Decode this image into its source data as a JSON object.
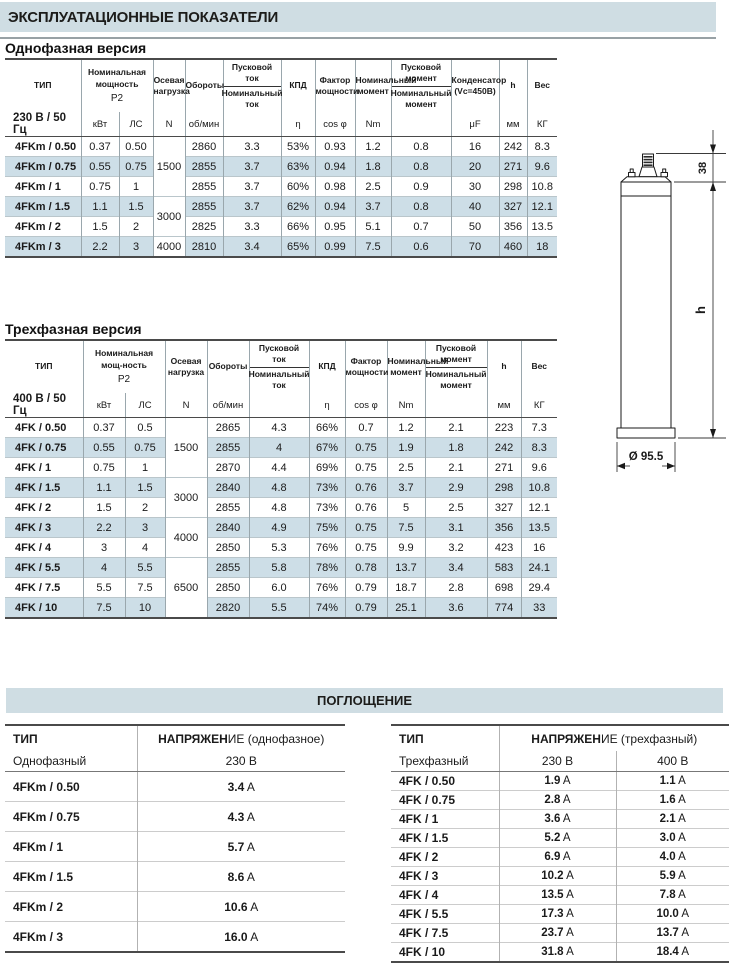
{
  "page_title": "ЭКСПЛУАТАЦИОННЫЕ ПОКАЗАТЕЛИ",
  "single_phase": {
    "section_title": "Однофазная версия",
    "h": {
      "type": "ТИП",
      "volt": "230 В / 50 Гц",
      "power": "Номинальная мощность",
      "p2": "P2",
      "kw": "кВт",
      "hp": "ЛС",
      "axial": "Осевая нагрузка",
      "axial_u": "N",
      "speed": "Обороты",
      "speed_u": "об/мин",
      "cur_top": "Пусковой ток",
      "cur_bot": "Номинальный ток",
      "eff": "КПД",
      "eff_u": "η",
      "pf": "Фактор мощности",
      "pf_u": "cos φ",
      "torque": "Номинальный момент",
      "torque_u": "Nm",
      "st_top": "Пусковой момент",
      "st_bot": "Номинальный момент",
      "cap": "Конденсатор (Vc=450B)",
      "cap_u": "μF",
      "h": "h",
      "h_u": "мм",
      "weight": "Вес",
      "weight_u": "КГ"
    },
    "rows": [
      [
        "4FKm / 0.50",
        "0.37",
        "0.50",
        {
          "text": "1500",
          "rowspan": 3
        },
        "2860",
        "3.3",
        "53%",
        "0.93",
        "1.2",
        "0.8",
        "16",
        "242",
        "8.3"
      ],
      [
        "4FKm / 0.75",
        "0.55",
        "0.75",
        "2855",
        "3.7",
        "63%",
        "0.94",
        "1.8",
        "0.8",
        "20",
        "271",
        "9.6"
      ],
      [
        "4FKm / 1",
        "0.75",
        "1",
        "2855",
        "3.7",
        "60%",
        "0.98",
        "2.5",
        "0.9",
        "30",
        "298",
        "10.8"
      ],
      [
        "4FKm / 1.5",
        "1.1",
        "1.5",
        {
          "text": "3000",
          "rowspan": 2
        },
        "2855",
        "3.7",
        "62%",
        "0.94",
        "3.7",
        "0.8",
        "40",
        "327",
        "12.1"
      ],
      [
        "4FKm / 2",
        "1.5",
        "2",
        "2825",
        "3.3",
        "66%",
        "0.95",
        "5.1",
        "0.7",
        "50",
        "356",
        "13.5"
      ],
      [
        "4FKm / 3",
        "2.2",
        "3",
        {
          "text": "4000",
          "rowspan": 1
        },
        "2810",
        "3.4",
        "65%",
        "0.99",
        "7.5",
        "0.6",
        "70",
        "460",
        "18"
      ]
    ]
  },
  "three_phase": {
    "section_title": "Трехфазная версия",
    "h": {
      "type": "ТИП",
      "volt": "400 В / 50 Гц",
      "power": "Номинальная мощ-ность",
      "p2": "P2",
      "kw": "кВт",
      "hp": "ЛС",
      "axial": "Осевая нагрузка",
      "axial_u": "N",
      "speed": "Обороты",
      "speed_u": "об/мин",
      "cur_top": "Пусковой ток",
      "cur_bot": "Номинальный ток",
      "eff": "КПД",
      "eff_u": "η",
      "pf": "Фактор мощности",
      "pf_u": "cos φ",
      "torque": "Номинальный момент",
      "torque_u": "Nm",
      "st_top": "Пусковой момент",
      "st_bot": "Номинальный момент",
      "h": "h",
      "h_u": "мм",
      "weight": "Вес",
      "weight_u": "КГ"
    },
    "rows": [
      [
        "4FK / 0.50",
        "0.37",
        "0.5",
        {
          "text": "1500",
          "rowspan": 3
        },
        "2865",
        "4.3",
        "66%",
        "0.7",
        "1.2",
        "2.1",
        "223",
        "7.3"
      ],
      [
        "4FK / 0.75",
        "0.55",
        "0.75",
        "2855",
        "4",
        "67%",
        "0.75",
        "1.9",
        "1.8",
        "242",
        "8.3"
      ],
      [
        "4FK / 1",
        "0.75",
        "1",
        "2870",
        "4.4",
        "69%",
        "0.75",
        "2.5",
        "2.1",
        "271",
        "9.6"
      ],
      [
        "4FK / 1.5",
        "1.1",
        "1.5",
        {
          "text": "3000",
          "rowspan": 2
        },
        "2840",
        "4.8",
        "73%",
        "0.76",
        "3.7",
        "2.9",
        "298",
        "10.8"
      ],
      [
        "4FK / 2",
        "1.5",
        "2",
        "2855",
        "4.8",
        "73%",
        "0.76",
        "5",
        "2.5",
        "327",
        "12.1"
      ],
      [
        "4FK / 3",
        "2.2",
        "3",
        {
          "text": "4000",
          "rowspan": 2
        },
        "2840",
        "4.9",
        "75%",
        "0.75",
        "7.5",
        "3.1",
        "356",
        "13.5"
      ],
      [
        "4FK / 4",
        "3",
        "4",
        "2850",
        "5.3",
        "76%",
        "0.75",
        "9.9",
        "3.2",
        "423",
        "16"
      ],
      [
        "4FK / 5.5",
        "4",
        "5.5",
        {
          "text": "6500",
          "rowspan": 3
        },
        "2855",
        "5.8",
        "78%",
        "0.78",
        "13.7",
        "3.4",
        "583",
        "24.1"
      ],
      [
        "4FK / 7.5",
        "5.5",
        "7.5",
        "2850",
        "6.0",
        "76%",
        "0.79",
        "18.7",
        "2.8",
        "698",
        "29.4"
      ],
      [
        "4FK / 10",
        "7.5",
        "10",
        "2820",
        "5.5",
        "74%",
        "0.79",
        "25.1",
        "3.6",
        "774",
        "33"
      ]
    ]
  },
  "absorption": {
    "title": "ПОГЛОЩЕНИЕ",
    "left": {
      "type_label": "ТИП",
      "phase": "Однофазный",
      "volt_bold": "НАПРЯЖЕН",
      "volt_rest": "ИЕ (однофазное)",
      "volt_value": "230 В",
      "rows": [
        [
          "4FKm / 0.50",
          {
            "v": "3.4",
            "u": "A"
          }
        ],
        [
          "4FKm / 0.75",
          {
            "v": "4.3",
            "u": "A"
          }
        ],
        [
          "4FKm / 1",
          {
            "v": "5.7",
            "u": "A"
          }
        ],
        [
          "4FKm / 1.5",
          {
            "v": "8.6",
            "u": "A"
          }
        ],
        [
          "4FKm / 2",
          {
            "v": "10.6",
            "u": "A"
          }
        ],
        [
          "4FKm / 3",
          {
            "v": "16.0",
            "u": "A"
          }
        ]
      ]
    },
    "right": {
      "type_label": "ТИП",
      "phase": "Трехфазный",
      "volt_bold": "НАПРЯЖЕН",
      "volt_rest": "ИЕ (трехфазный)",
      "col_230": "230 В",
      "col_400": "400 В",
      "rows": [
        [
          "4FK / 0.50",
          {
            "v": "1.9",
            "u": "A"
          },
          {
            "v": "1.1",
            "u": "A"
          }
        ],
        [
          "4FK / 0.75",
          {
            "v": "2.8",
            "u": "A"
          },
          {
            "v": "1.6",
            "u": "A"
          }
        ],
        [
          "4FK / 1",
          {
            "v": "3.6",
            "u": "A"
          },
          {
            "v": "2.1",
            "u": "A"
          }
        ],
        [
          "4FK / 1.5",
          {
            "v": "5.2",
            "u": "A"
          },
          {
            "v": "3.0",
            "u": "A"
          }
        ],
        [
          "4FK / 2",
          {
            "v": "6.9",
            "u": "A"
          },
          {
            "v": "4.0",
            "u": "A"
          }
        ],
        [
          "4FK / 3",
          {
            "v": "10.2",
            "u": "A"
          },
          {
            "v": "5.9",
            "u": "A"
          }
        ],
        [
          "4FK / 4",
          {
            "v": "13.5",
            "u": "A"
          },
          {
            "v": "7.8",
            "u": "A"
          }
        ],
        [
          "4FK / 5.5",
          {
            "v": "17.3",
            "u": "A"
          },
          {
            "v": "10.0",
            "u": "A"
          }
        ],
        [
          "4FK / 7.5",
          {
            "v": "23.7",
            "u": "A"
          },
          {
            "v": "13.7",
            "u": "A"
          }
        ],
        [
          "4FK / 10",
          {
            "v": "31.8",
            "u": "A"
          },
          {
            "v": "18.4",
            "u": "A"
          }
        ]
      ]
    }
  },
  "drawing": {
    "dim_top": "38",
    "dim_height": "h",
    "dim_diameter": "Ø 95.5"
  },
  "colors": {
    "band": "#cfdde3",
    "row_shade": "#cddee7",
    "frame": "#4a4a4a"
  }
}
